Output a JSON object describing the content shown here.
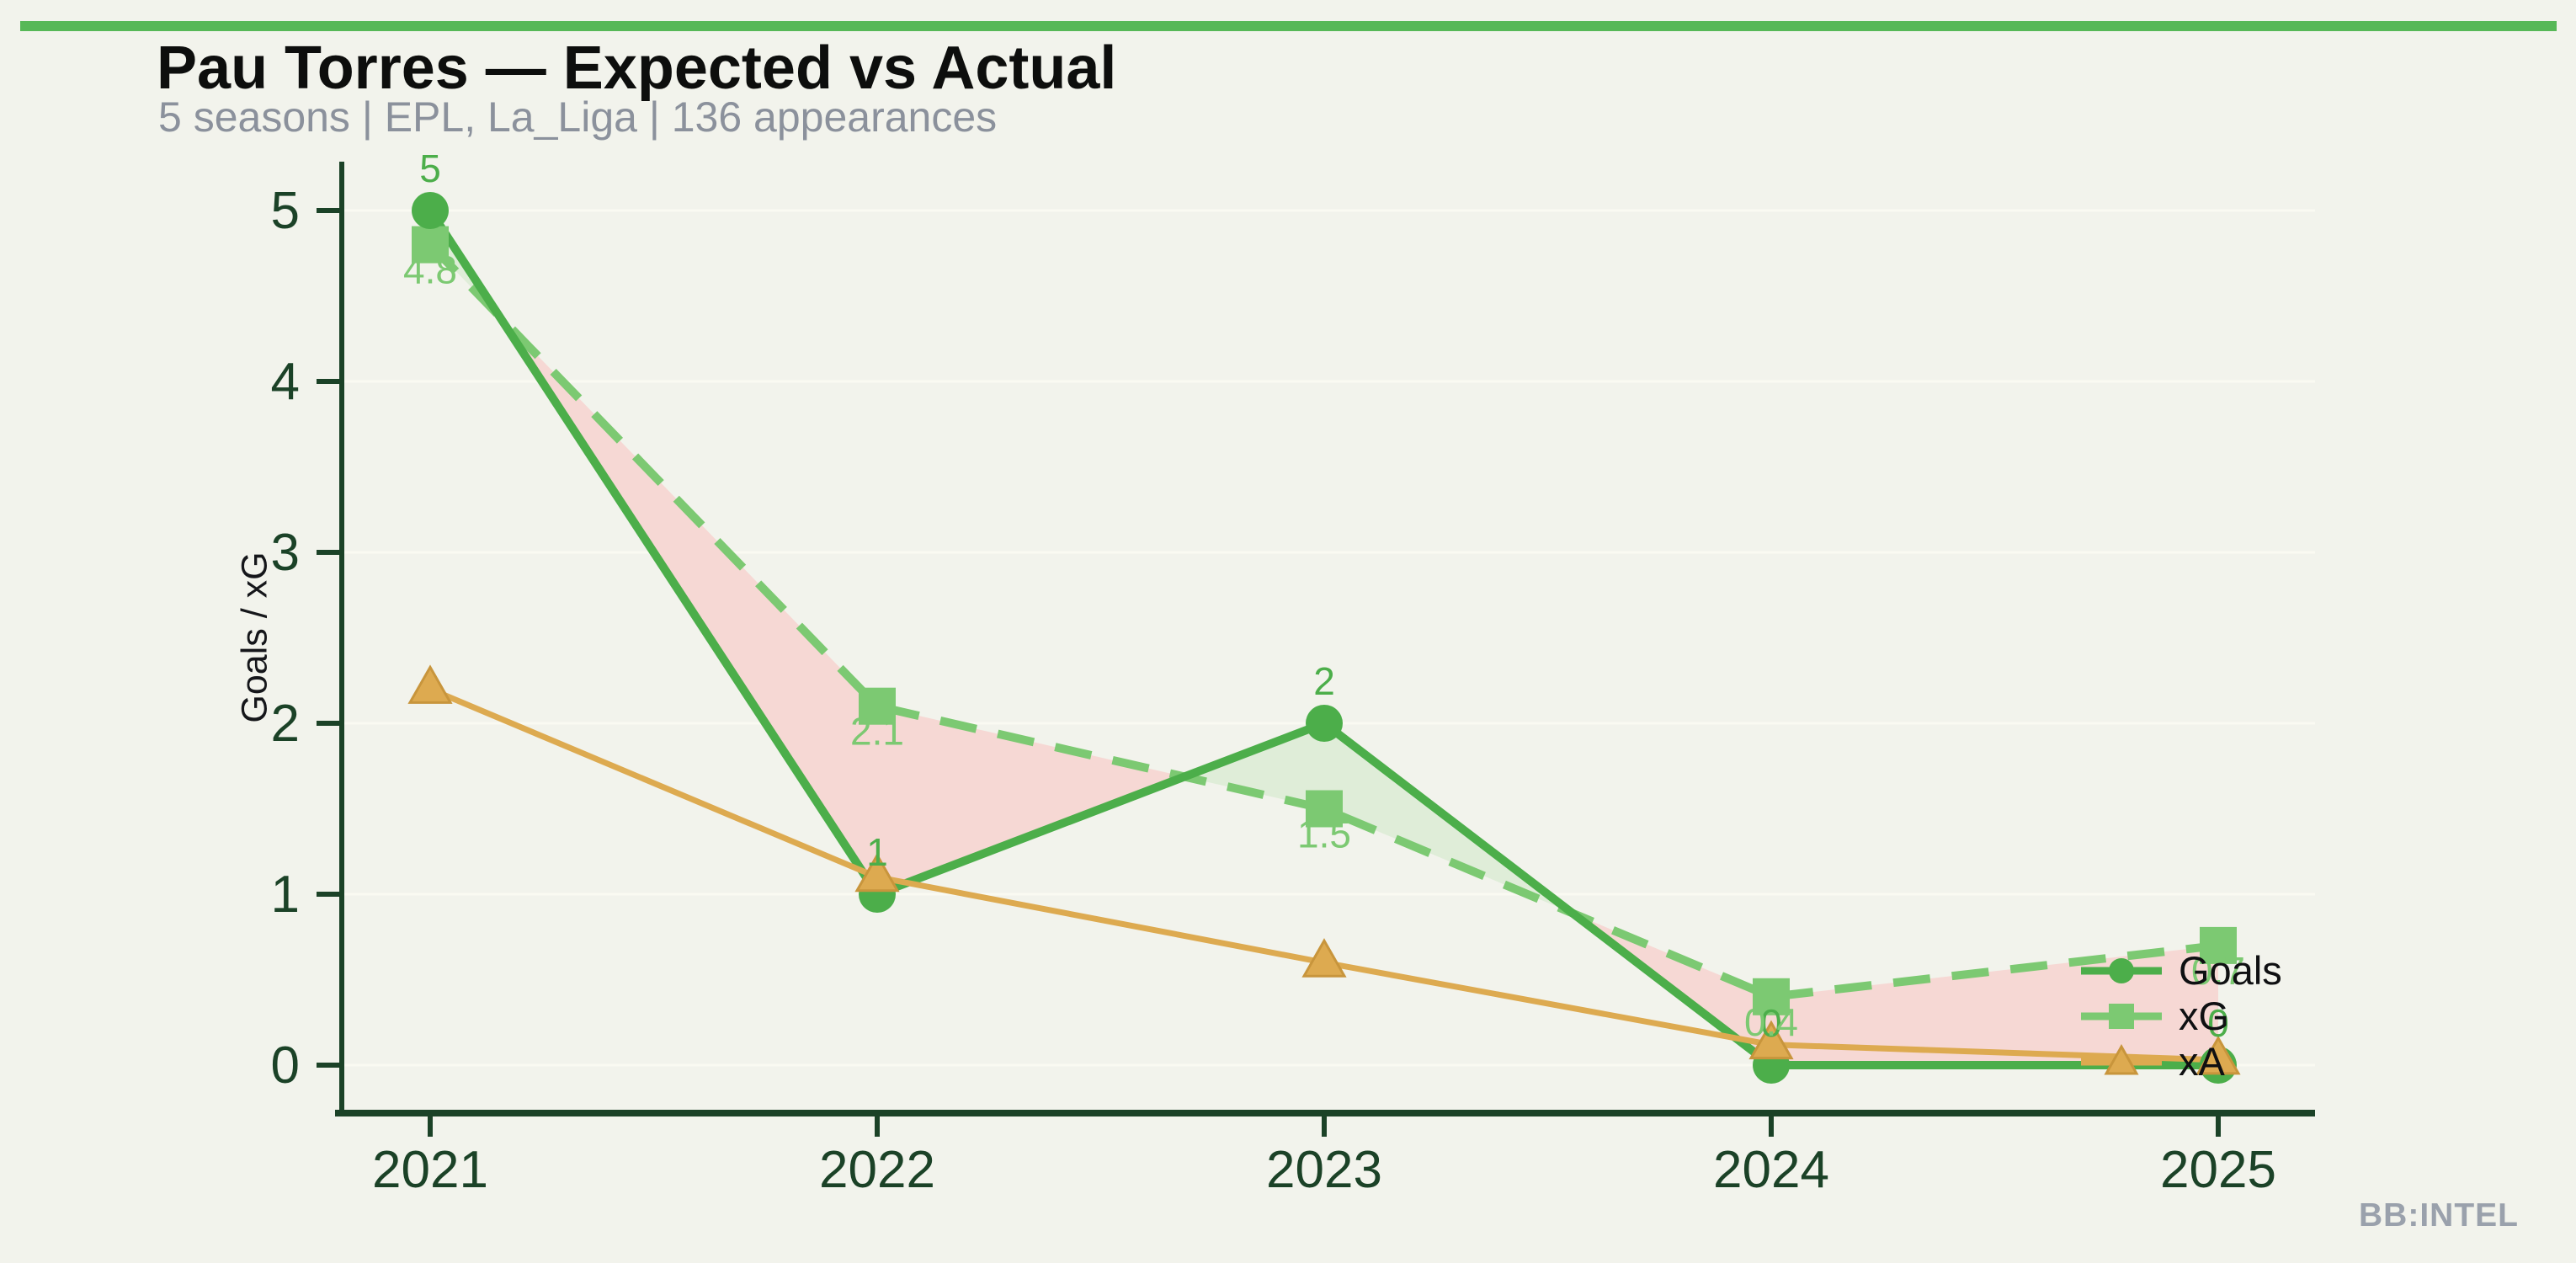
{
  "page": {
    "title": "Pau Torres — Expected vs Actual",
    "subtitle": "5 seasons | EPL, La_Liga | 136 appearances",
    "watermark": "BB:INTEL",
    "accent_bar_color": "#57b857",
    "background_color": "#f2f3ec"
  },
  "chart_data": {
    "type": "line",
    "title": "Pau Torres — Expected vs Actual",
    "x": [
      "2021",
      "2022",
      "2023",
      "2024",
      "2025"
    ],
    "series": [
      {
        "name": "Goals",
        "values": [
          5,
          1,
          2,
          0,
          0
        ],
        "data_labels": [
          "5",
          "1",
          "2",
          "0",
          "0"
        ],
        "label_position": "above",
        "color": "#4cae4a",
        "marker": "circle",
        "line_style": "solid"
      },
      {
        "name": "xG",
        "values": [
          4.8,
          2.1,
          1.5,
          0.4,
          0.7
        ],
        "data_labels": [
          "4.8",
          "2.1",
          "1.5",
          "0.4",
          "0.7"
        ],
        "label_position": "below",
        "color": "#7cc972",
        "marker": "square",
        "line_style": "dashed"
      },
      {
        "name": "xA",
        "values": [
          2.2,
          1.1,
          0.6,
          0.12,
          0.03
        ],
        "data_labels": [],
        "label_position": "above",
        "color": "#ddaa50",
        "marker": "triangle",
        "marker_edge_color": "#c8953c",
        "line_style": "solid"
      }
    ],
    "xlabel": "",
    "ylabel": "Goals / xG",
    "ylim": [
      0,
      5
    ],
    "yticks": [
      0,
      1,
      2,
      3,
      4,
      5
    ],
    "grid": true,
    "grid_color": "#fafaf2",
    "axis_color": "#1b4227",
    "legend_position": "inside-right",
    "fill_between": {
      "between": [
        "Goals",
        "xG"
      ],
      "above_color": "#dfedd8",
      "below_color": "#f6d8d4"
    }
  }
}
